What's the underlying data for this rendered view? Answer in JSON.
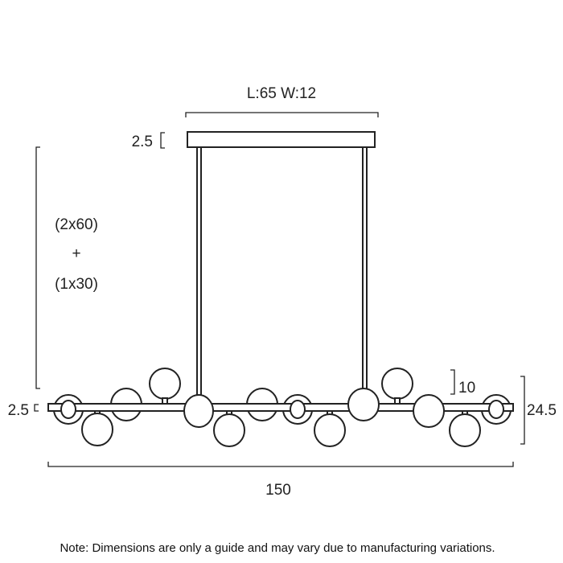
{
  "dimensions": {
    "canopy": "L:65 W:12",
    "canopy_height": "2.5",
    "suspension_line1": "(2x60)",
    "suspension_plus": "+",
    "suspension_line2": "(1x30)",
    "bar_height": "2.5",
    "globe_offset": "10",
    "total_height": "24.5",
    "total_length": "150"
  },
  "note": "Note: Dimensions are only a guide and may vary due to manufacturing variations.",
  "colors": {
    "line": "#222222",
    "background": "#ffffff"
  }
}
